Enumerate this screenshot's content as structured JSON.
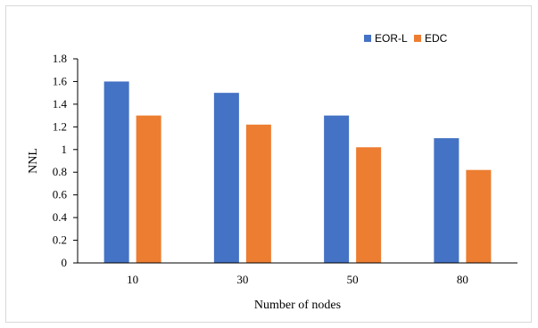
{
  "chart_data": {
    "type": "bar",
    "categories": [
      "10",
      "30",
      "50",
      "80"
    ],
    "series": [
      {
        "name": "EOR-L",
        "color": "#4472c4",
        "values": [
          1.6,
          1.5,
          1.3,
          1.1
        ]
      },
      {
        "name": "EDC",
        "color": "#ed7d31",
        "values": [
          1.3,
          1.22,
          1.02,
          0.82
        ]
      }
    ],
    "xlabel": "Number of nodes",
    "ylabel": "NNL",
    "ylim": [
      0,
      1.8
    ],
    "yticks": [
      "0",
      "0.2",
      "0.4",
      "0.6",
      "0.8",
      "1",
      "1.2",
      "1.4",
      "1.6",
      "1.8"
    ],
    "grid": false,
    "legend_position": "top-right"
  }
}
